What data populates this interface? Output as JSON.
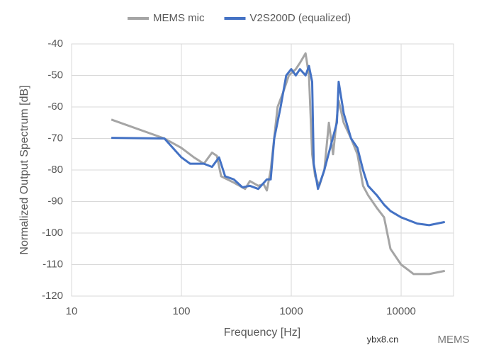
{
  "chart_data": {
    "type": "line",
    "x_label": "Frequency [Hz]",
    "y_label": "Normalized Output Spectrum [dB]",
    "xlim": [
      10,
      30000
    ],
    "xticks": [
      10,
      100,
      1000,
      10000
    ],
    "log_x": true,
    "ylim": [
      -120,
      -40
    ],
    "yticks": [
      -120,
      -110,
      -100,
      -90,
      -80,
      -70,
      -60,
      -50,
      -40
    ],
    "grid": true,
    "legend": "top",
    "series": [
      {
        "name": "MEMS mic",
        "color": "#a5a5a5",
        "x": [
          23,
          70,
          100,
          130,
          160,
          190,
          210,
          230,
          300,
          380,
          420,
          500,
          560,
          600,
          650,
          750,
          850,
          950,
          1100,
          1200,
          1350,
          1450,
          1550,
          1650,
          1800,
          2000,
          2200,
          2400,
          2700,
          3000,
          3500,
          4000,
          4500,
          5000,
          6000,
          7000,
          8000,
          10000,
          13000,
          18000,
          25000
        ],
        "values": [
          -64,
          -70,
          -73,
          -76,
          -78,
          -74.5,
          -75.5,
          -82,
          -84,
          -86,
          -83.5,
          -85,
          -84.5,
          -86.5,
          -80,
          -60,
          -55,
          -50,
          -48,
          -46,
          -43,
          -50,
          -75,
          -82,
          -85,
          -80,
          -65,
          -75,
          -58,
          -65,
          -70,
          -75,
          -85,
          -88,
          -92,
          -95,
          -105,
          -110,
          -113,
          -113,
          -112
        ]
      },
      {
        "name": "V2S200D (equalized)",
        "color": "#4472c4",
        "x": [
          23,
          70,
          100,
          120,
          160,
          190,
          220,
          250,
          300,
          360,
          420,
          500,
          600,
          650,
          700,
          800,
          900,
          1000,
          1100,
          1200,
          1350,
          1450,
          1550,
          1600,
          1750,
          2000,
          2300,
          2600,
          2700,
          3000,
          3500,
          4000,
          4500,
          5000,
          6000,
          7000,
          8000,
          10000,
          14000,
          18000,
          25000
        ],
        "values": [
          -69.8,
          -70,
          -76,
          -78,
          -78,
          -79,
          -76,
          -82,
          -83,
          -85.5,
          -85,
          -86,
          -83,
          -83,
          -70,
          -60,
          -50,
          -48,
          -50,
          -48,
          -50,
          -47,
          -52,
          -78,
          -86,
          -80,
          -72,
          -65,
          -52,
          -62,
          -70,
          -73,
          -80,
          -85,
          -88,
          -91,
          -93,
          -95,
          -97,
          -97.5,
          -96.5
        ]
      }
    ]
  },
  "watermark": {
    "site": "ybx8.cn",
    "brand": "MEMS"
  }
}
